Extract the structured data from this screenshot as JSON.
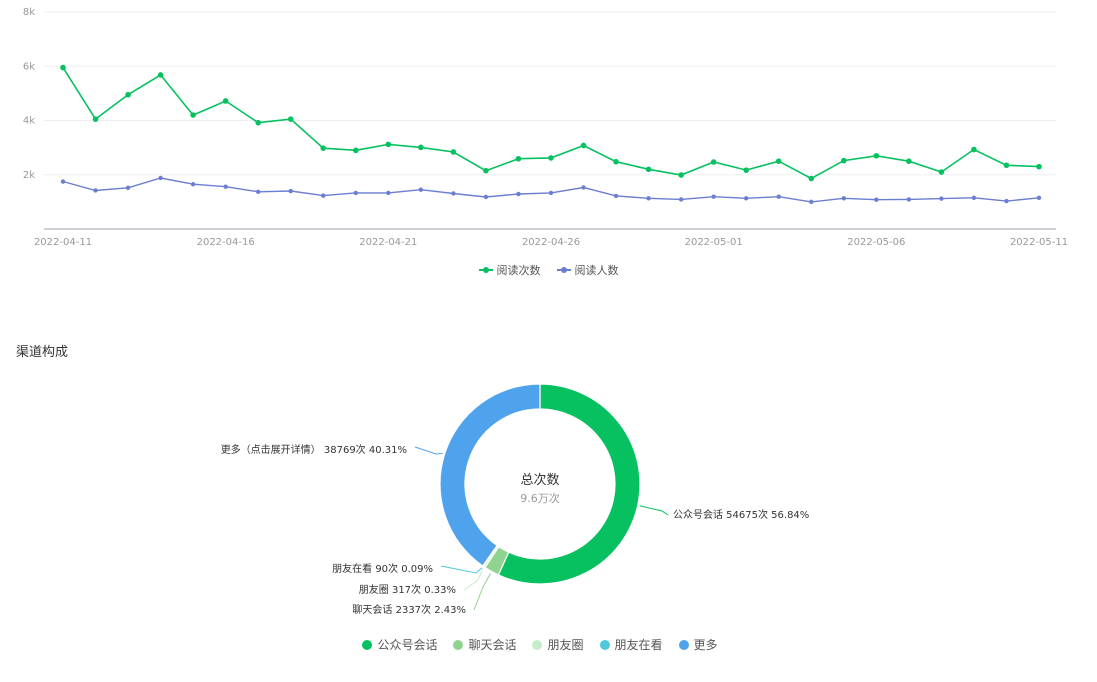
{
  "colors": {
    "reads": "#07c160",
    "readers": "#6b7ed1",
    "grid": "#eeeeee",
    "axis_line": "#9ea3ad",
    "tick_text": "#999999",
    "slice_colors": [
      "#07c160",
      "#8fd38f",
      "#c7eccd",
      "#4fc7dc",
      "#4fa3ec"
    ]
  },
  "line_legend": [
    {
      "name": "阅读次数",
      "color": "#07c160"
    },
    {
      "name": "阅读人数",
      "color": "#6b7ed1"
    }
  ],
  "section": {
    "channel_title": "渠道构成"
  },
  "pie_center": {
    "title": "总次数",
    "value": "9.6万次"
  },
  "pie_legend": [
    {
      "name": "公众号会话",
      "color": "#07c160"
    },
    {
      "name": "聊天会话",
      "color": "#8fd38f"
    },
    {
      "name": "朋友圈",
      "color": "#c7eccd"
    },
    {
      "name": "朋友在看",
      "color": "#4fc7dc"
    },
    {
      "name": "更多",
      "color": "#4fa3ec"
    }
  ],
  "chart_data": [
    {
      "type": "line",
      "title": "",
      "xlabel": "",
      "ylabel": "",
      "ylim": [
        0,
        8000
      ],
      "y_ticks": [
        {
          "value": 2000,
          "label": "2k"
        },
        {
          "value": 4000,
          "label": "4k"
        },
        {
          "value": 6000,
          "label": "6k"
        },
        {
          "value": 8000,
          "label": "8k"
        }
      ],
      "x": [
        "2022-04-11",
        "2022-04-12",
        "2022-04-13",
        "2022-04-14",
        "2022-04-15",
        "2022-04-16",
        "2022-04-17",
        "2022-04-18",
        "2022-04-19",
        "2022-04-20",
        "2022-04-21",
        "2022-04-22",
        "2022-04-23",
        "2022-04-24",
        "2022-04-25",
        "2022-04-26",
        "2022-04-27",
        "2022-04-28",
        "2022-04-29",
        "2022-04-30",
        "2022-05-01",
        "2022-05-02",
        "2022-05-03",
        "2022-05-04",
        "2022-05-05",
        "2022-05-06",
        "2022-05-07",
        "2022-05-08",
        "2022-05-09",
        "2022-05-10",
        "2022-05-11"
      ],
      "x_tick_labels": [
        "2022-04-11",
        "2022-04-16",
        "2022-04-21",
        "2022-04-26",
        "2022-05-01",
        "2022-05-06",
        "2022-05-11"
      ],
      "grid": true,
      "legend": "bottom-center",
      "series": [
        {
          "name": "阅读次数",
          "values": [
            5950,
            4050,
            4950,
            5680,
            4200,
            4720,
            3920,
            4050,
            2980,
            2900,
            3120,
            3010,
            2840,
            2150,
            2590,
            2620,
            3080,
            2480,
            2200,
            1990,
            2470,
            2170,
            2500,
            1860,
            2520,
            2700,
            2500,
            2100,
            2930,
            2350,
            2300
          ]
        },
        {
          "name": "阅读人数",
          "values": [
            1750,
            1420,
            1520,
            1880,
            1650,
            1560,
            1370,
            1400,
            1230,
            1330,
            1330,
            1450,
            1310,
            1180,
            1290,
            1330,
            1530,
            1220,
            1130,
            1090,
            1190,
            1130,
            1190,
            1000,
            1130,
            1080,
            1090,
            1120,
            1150,
            1030,
            1150
          ]
        }
      ]
    },
    {
      "type": "pie",
      "title": "",
      "legend": "bottom-center",
      "slices": [
        {
          "name": "公众号会话",
          "value": 54675,
          "label": "公众号会话 54675次 56.84%"
        },
        {
          "name": "聊天会话",
          "value": 2337,
          "label": "聊天会话 2337次 2.43%"
        },
        {
          "name": "朋友圈",
          "value": 317,
          "label": "朋友圈 317次 0.33%"
        },
        {
          "name": "朋友在看",
          "value": 90,
          "label": "朋友在看 90次 0.09%"
        },
        {
          "name": "更多",
          "value": 38769,
          "label": "更多（点击展开详情） 38769次 40.31%"
        }
      ]
    }
  ]
}
